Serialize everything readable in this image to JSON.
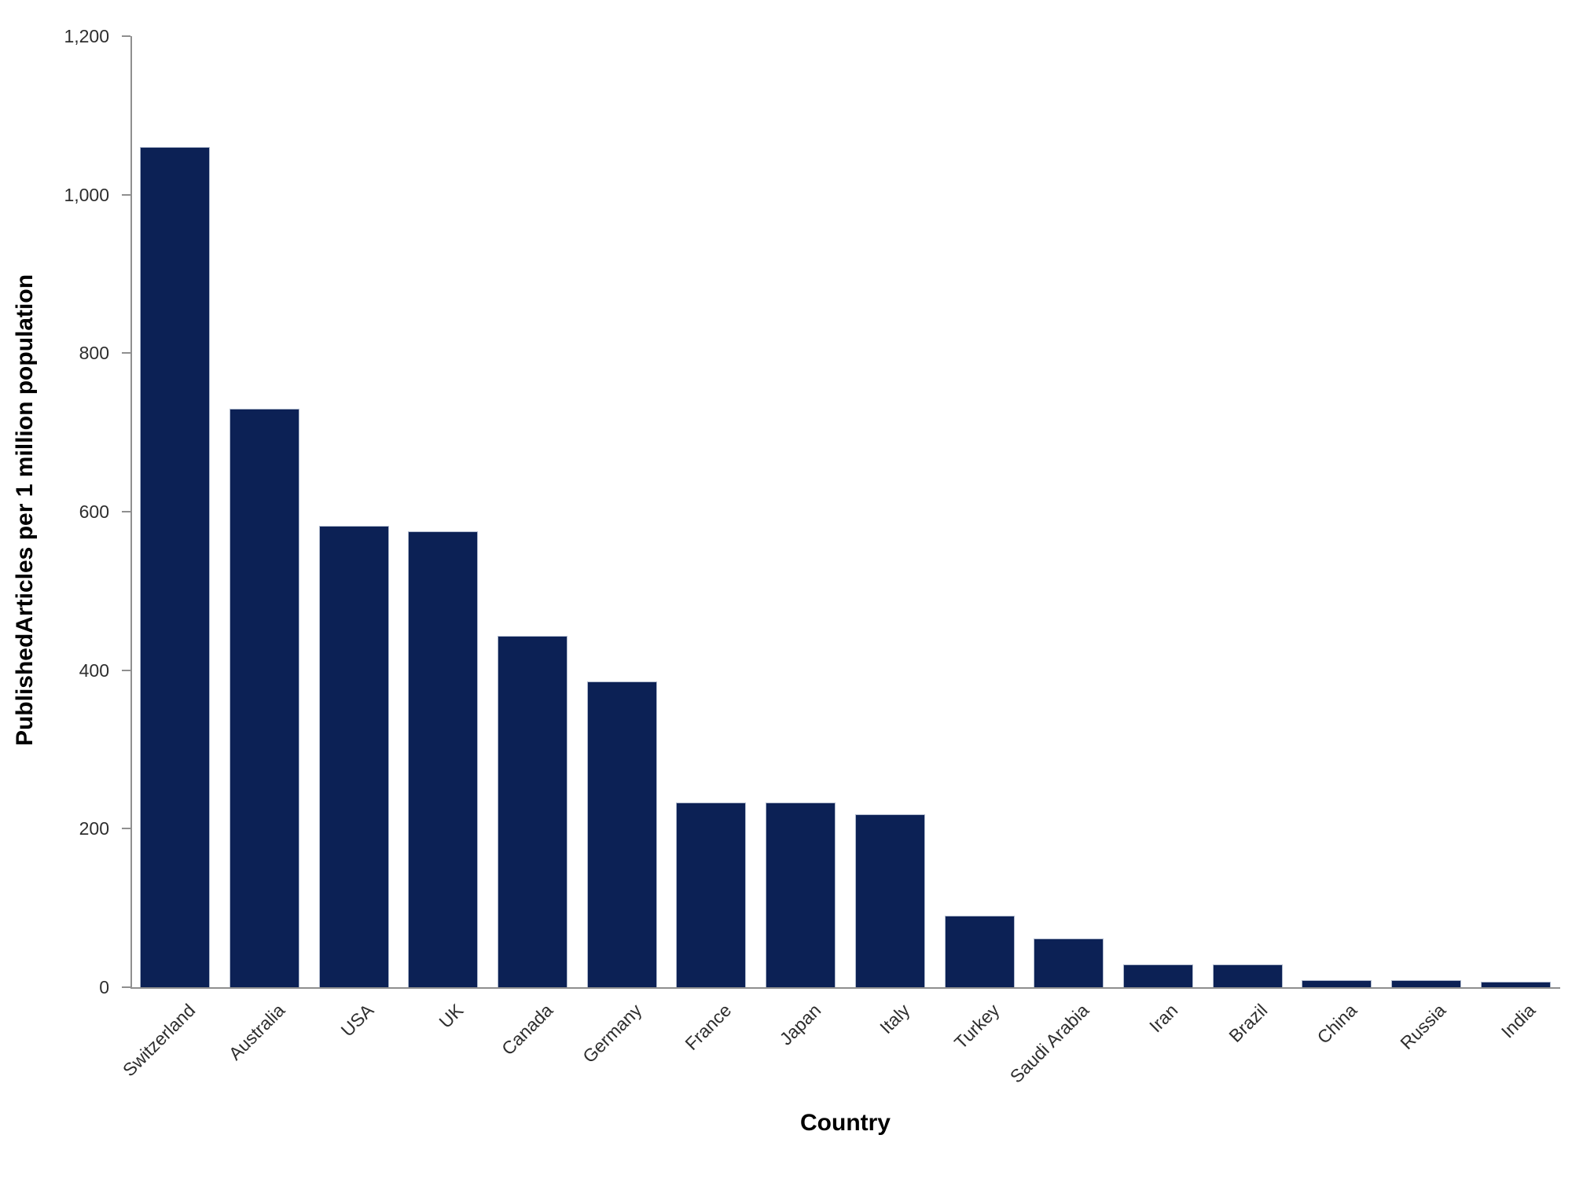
{
  "chart_data": {
    "type": "bar",
    "categories": [
      "Switzerland",
      "Australia",
      "USA",
      "UK",
      "Canada",
      "Germany",
      "France",
      "Japan",
      "Italy",
      "Turkey",
      "Saudi Arabia",
      "Iran",
      "Brazil",
      "China",
      "Russia",
      "India"
    ],
    "values": [
      1060,
      730,
      582,
      575,
      443,
      386,
      233,
      233,
      218,
      90,
      61,
      29,
      29,
      9,
      9,
      7
    ],
    "xlabel": "Country",
    "ylabel": "PublishedArticles per 1 million population",
    "ylim": [
      0,
      1200
    ],
    "yticks": [
      0,
      200,
      400,
      600,
      800,
      1000,
      1200
    ],
    "ytick_labels": [
      "0",
      "200",
      "400",
      "600",
      "800",
      "1,000",
      "1,200"
    ],
    "grid": false,
    "legend": "none",
    "colors": {
      "bar_fill": "#0c2155",
      "bar_border": "#b0bacd",
      "axis_line": "#8f8f8f",
      "tick_text": "#2e2e2e",
      "title_text": "#000000"
    }
  }
}
